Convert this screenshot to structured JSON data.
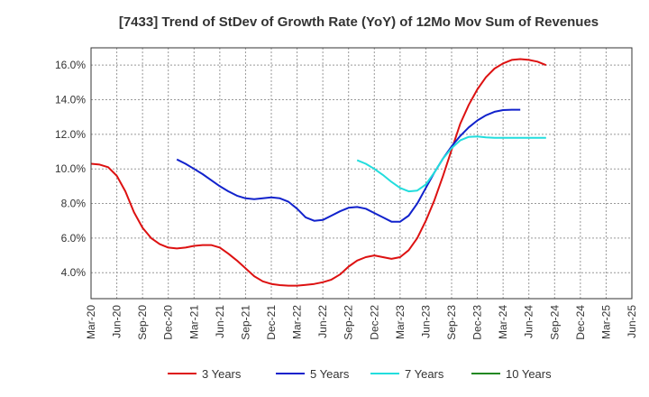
{
  "chart_data": {
    "type": "line",
    "title": "[7433]  Trend of StDev of Growth Rate (YoY) of 12Mo Mov Sum of Revenues",
    "xlabel": "",
    "ylabel": "",
    "ylim": [
      2.5,
      17.0
    ],
    "y_ticks": [
      4.0,
      6.0,
      8.0,
      10.0,
      12.0,
      14.0,
      16.0
    ],
    "y_tick_labels": [
      "4.0%",
      "6.0%",
      "8.0%",
      "10.0%",
      "12.0%",
      "14.0%",
      "16.0%"
    ],
    "x_tick_labels": [
      "Mar-20",
      "Jun-20",
      "Sep-20",
      "Dec-20",
      "Mar-21",
      "Jun-21",
      "Sep-21",
      "Dec-21",
      "Mar-22",
      "Jun-22",
      "Sep-22",
      "Dec-22",
      "Mar-23",
      "Jun-23",
      "Sep-23",
      "Dec-23",
      "Mar-24",
      "Jun-24",
      "Sep-24",
      "Dec-24",
      "Mar-25",
      "Jun-25"
    ],
    "grid": true,
    "legend_position": "bottom",
    "series": [
      {
        "name": "3 Years",
        "color": "#dd1111",
        "start_index": 0,
        "values": [
          10.3,
          10.25,
          10.1,
          9.6,
          8.7,
          7.5,
          6.6,
          6.0,
          5.65,
          5.45,
          5.4,
          5.45,
          5.55,
          5.6,
          5.6,
          5.45,
          5.1,
          4.7,
          4.25,
          3.8,
          3.5,
          3.35,
          3.28,
          3.25,
          3.25,
          3.3,
          3.35,
          3.45,
          3.6,
          3.9,
          4.35,
          4.7,
          4.9,
          5.0,
          4.9,
          4.8,
          4.9,
          5.3,
          6.0,
          7.0,
          8.2,
          9.6,
          11.1,
          12.6,
          13.7,
          14.6,
          15.3,
          15.8,
          16.1,
          16.3,
          16.35,
          16.3,
          16.2,
          16.0
        ]
      },
      {
        "name": "5 Years",
        "color": "#1122cc",
        "start_index": 10,
        "values": [
          10.55,
          10.3,
          10.0,
          9.7,
          9.35,
          9.0,
          8.7,
          8.45,
          8.3,
          8.25,
          8.3,
          8.35,
          8.3,
          8.1,
          7.7,
          7.2,
          7.0,
          7.05,
          7.3,
          7.55,
          7.75,
          7.8,
          7.7,
          7.45,
          7.2,
          6.95,
          6.95,
          7.3,
          8.0,
          8.9,
          9.8,
          10.6,
          11.3,
          11.9,
          12.4,
          12.8,
          13.1,
          13.3,
          13.4,
          13.42,
          13.42
        ]
      },
      {
        "name": "7 Years",
        "color": "#22dddd",
        "start_index": 31,
        "values": [
          10.5,
          10.3,
          10.0,
          9.65,
          9.25,
          8.9,
          8.7,
          8.75,
          9.1,
          9.8,
          10.6,
          11.2,
          11.65,
          11.85,
          11.88,
          11.82,
          11.8,
          11.8,
          11.8,
          11.8,
          11.8,
          11.8,
          11.8
        ]
      },
      {
        "name": "10 Years",
        "color": "#228822",
        "start_index": 0,
        "values": []
      }
    ]
  }
}
